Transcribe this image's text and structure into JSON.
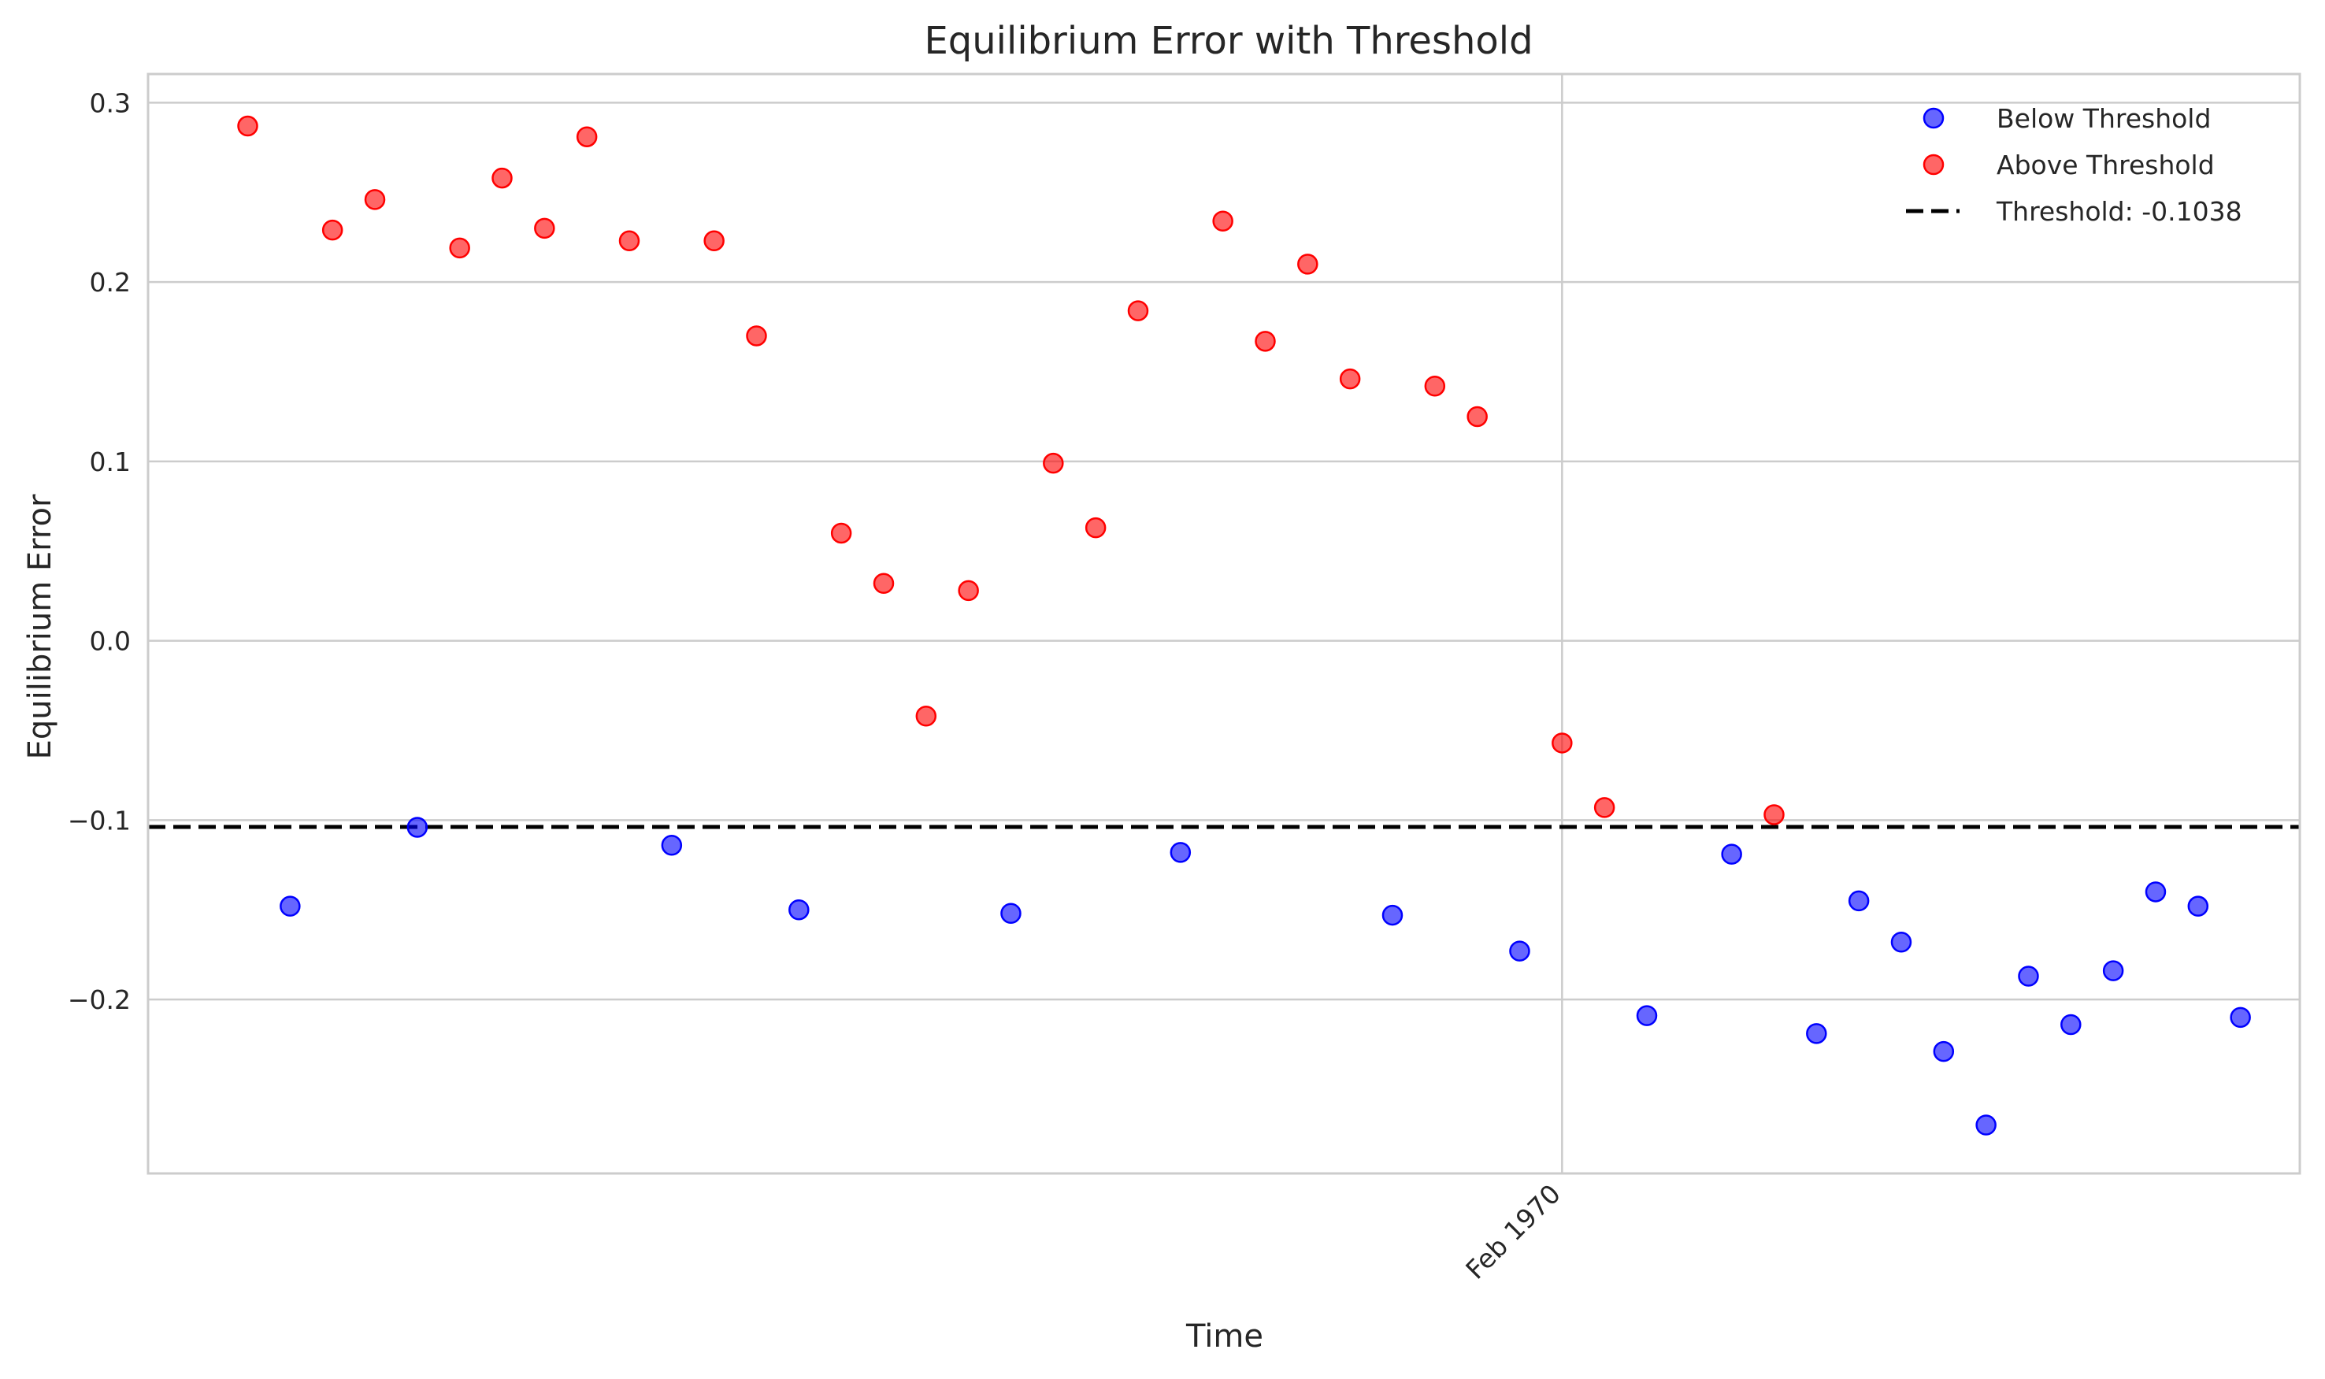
{
  "chart_data": {
    "type": "scatter",
    "title": "Equilibrium Error with Threshold",
    "xlabel": "Time",
    "ylabel": "Equilibrium Error",
    "x_tick_labels": [
      {
        "value": 31,
        "label": "Feb 1970"
      }
    ],
    "y_ticks": [
      0.3,
      0.2,
      0.1,
      0.0,
      -0.1,
      -0.2
    ],
    "y_tick_labels": [
      "0.3",
      "0.2",
      "0.1",
      "0.0",
      "−0.1",
      "−0.2"
    ],
    "xlim": [
      -2.35,
      48.4
    ],
    "ylim": [
      -0.297,
      0.316
    ],
    "grid": true,
    "legend_position": "top-right",
    "threshold": {
      "label": "Threshold: -0.1038",
      "value": -0.1038,
      "color": "#000000"
    },
    "series": [
      {
        "name": "Below Threshold",
        "color": "#0000ff",
        "x": [
          1,
          4,
          10,
          13,
          18,
          22,
          27,
          30,
          33,
          35,
          37,
          38,
          39,
          40,
          41,
          42,
          43,
          44,
          45,
          46,
          47
        ],
        "y": [
          -0.148,
          -0.104,
          -0.114,
          -0.15,
          -0.152,
          -0.118,
          -0.153,
          -0.173,
          -0.209,
          -0.119,
          -0.219,
          -0.145,
          -0.168,
          -0.229,
          -0.27,
          -0.187,
          -0.214,
          -0.184,
          -0.14,
          -0.148,
          -0.21
        ]
      },
      {
        "name": "Above Threshold",
        "color": "#ff0000",
        "x": [
          0,
          2,
          3,
          5,
          6,
          7,
          8,
          9,
          11,
          12,
          14,
          15,
          16,
          17,
          19,
          20,
          21,
          23,
          24,
          25,
          26,
          28,
          29,
          31,
          32,
          36
        ],
        "y": [
          0.287,
          0.229,
          0.246,
          0.219,
          0.258,
          0.23,
          0.281,
          0.223,
          0.223,
          0.17,
          0.06,
          0.032,
          -0.042,
          0.028,
          0.099,
          0.063,
          0.184,
          0.234,
          0.167,
          0.21,
          0.146,
          0.142,
          0.125,
          -0.057,
          -0.093,
          -0.097
        ]
      }
    ]
  }
}
